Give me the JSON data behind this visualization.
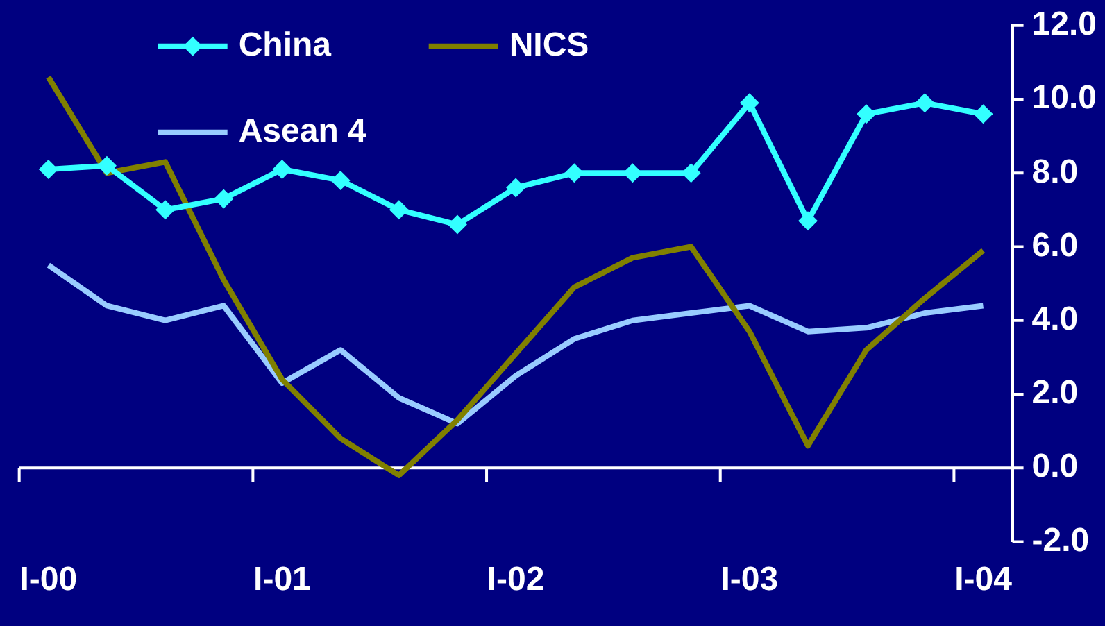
{
  "chart_data": {
    "type": "line",
    "categories": [
      "I-00",
      null,
      null,
      null,
      "I-01",
      null,
      null,
      null,
      "I-02",
      null,
      null,
      null,
      "I-03",
      null,
      null,
      null,
      "I-04"
    ],
    "series": [
      {
        "name": "China",
        "color": "#33ffff",
        "marker": "diamond",
        "values": [
          8.1,
          8.2,
          7.0,
          7.3,
          8.1,
          7.8,
          7.0,
          6.6,
          7.6,
          8.0,
          8.0,
          8.0,
          9.9,
          6.7,
          9.6,
          9.9,
          9.6
        ]
      },
      {
        "name": "NICS",
        "color": "#808000",
        "marker": "none",
        "values": [
          10.6,
          8.0,
          8.3,
          5.1,
          2.4,
          0.8,
          -0.2,
          1.3,
          3.1,
          4.9,
          5.7,
          6.0,
          3.7,
          0.6,
          3.2,
          4.6,
          5.9
        ]
      },
      {
        "name": "Asean 4",
        "color": "#99ccff",
        "marker": "none",
        "values": [
          5.5,
          4.4,
          4.0,
          4.4,
          2.3,
          3.2,
          1.9,
          1.2,
          2.5,
          3.5,
          4.0,
          4.2,
          4.4,
          3.7,
          3.8,
          4.2,
          4.4
        ]
      }
    ],
    "ylim": [
      -2,
      12
    ],
    "yticks": [
      {
        "value": -2,
        "label": "-2.0"
      },
      {
        "value": 0,
        "label": "0.0"
      },
      {
        "value": 2,
        "label": "2.0"
      },
      {
        "value": 4,
        "label": "4.0"
      },
      {
        "value": 6,
        "label": "6.0"
      },
      {
        "value": 8,
        "label": "8.0"
      },
      {
        "value": 10,
        "label": "10.0"
      },
      {
        "value": 12,
        "label": "12.0"
      }
    ],
    "legend": "top left",
    "line_style": "solid"
  }
}
